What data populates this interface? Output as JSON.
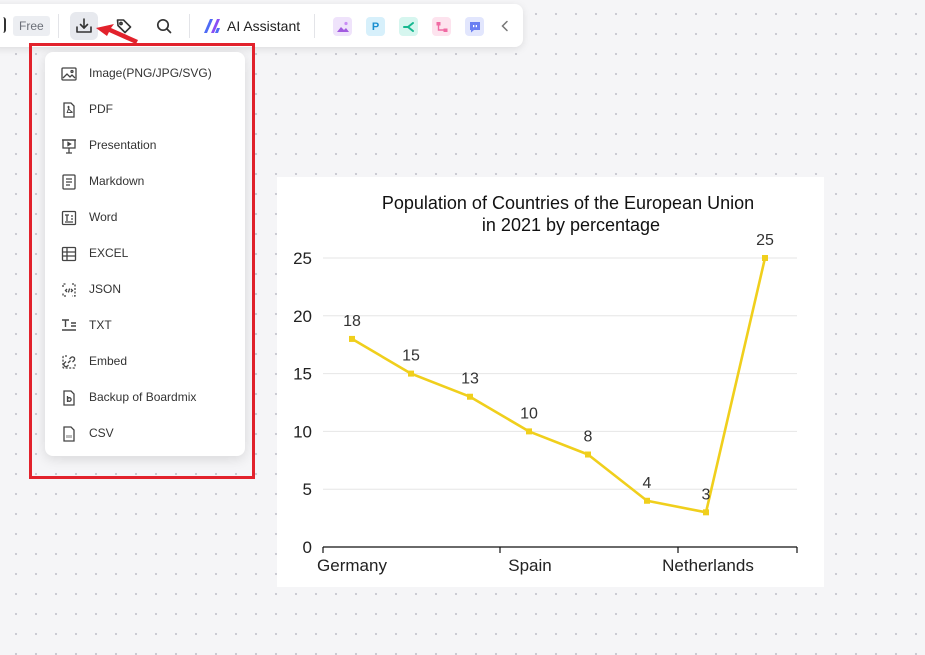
{
  "toolbar": {
    "plan_badge": "Free",
    "ai_assistant_label": "AI Assistant",
    "icons": [
      "export-icon",
      "tag-icon",
      "search-icon",
      "ai-logo-icon",
      "image-gen-app-icon",
      "p-app-icon",
      "mindmap-app-icon",
      "flow-app-icon",
      "chat-app-icon",
      "collapse-chevron-icon"
    ],
    "app_tile_p_letter": "P"
  },
  "export_menu": {
    "items": [
      {
        "label": "Image(PNG/JPG/SVG)",
        "icon": "image-icon"
      },
      {
        "label": "PDF",
        "icon": "pdf-icon"
      },
      {
        "label": "Presentation",
        "icon": "presentation-icon"
      },
      {
        "label": "Markdown",
        "icon": "markdown-icon"
      },
      {
        "label": "Word",
        "icon": "word-icon"
      },
      {
        "label": "EXCEL",
        "icon": "excel-icon"
      },
      {
        "label": "JSON",
        "icon": "json-icon"
      },
      {
        "label": "TXT",
        "icon": "txt-icon"
      },
      {
        "label": "Embed",
        "icon": "embed-icon"
      },
      {
        "label": "Backup of Boardmix",
        "icon": "backup-icon"
      },
      {
        "label": "CSV",
        "icon": "csv-icon"
      }
    ]
  },
  "colors": {
    "highlight": "#e2222c",
    "line": "#f0cf1c",
    "accent": "#4f6bf5"
  },
  "chart_data": {
    "type": "line",
    "title": "Population of Countries of the European Union in 2021 by percentage",
    "title_lines": [
      "Population of Countries of the European Union",
      "in 2021 by percentage"
    ],
    "x_tick_labels": [
      "Germany",
      "Spain",
      "Netherlands"
    ],
    "values": [
      18,
      15,
      13,
      10,
      8,
      4,
      3,
      25
    ],
    "data_labels": [
      "18",
      "15",
      "13",
      "10",
      "8",
      "4",
      "3",
      "25"
    ],
    "y_ticks": [
      0,
      5,
      10,
      15,
      20,
      25
    ],
    "y_tick_labels": [
      "0",
      "5",
      "10",
      "15",
      "20",
      "25"
    ],
    "ylim": [
      0,
      25
    ],
    "grid": true,
    "legend": "none"
  }
}
